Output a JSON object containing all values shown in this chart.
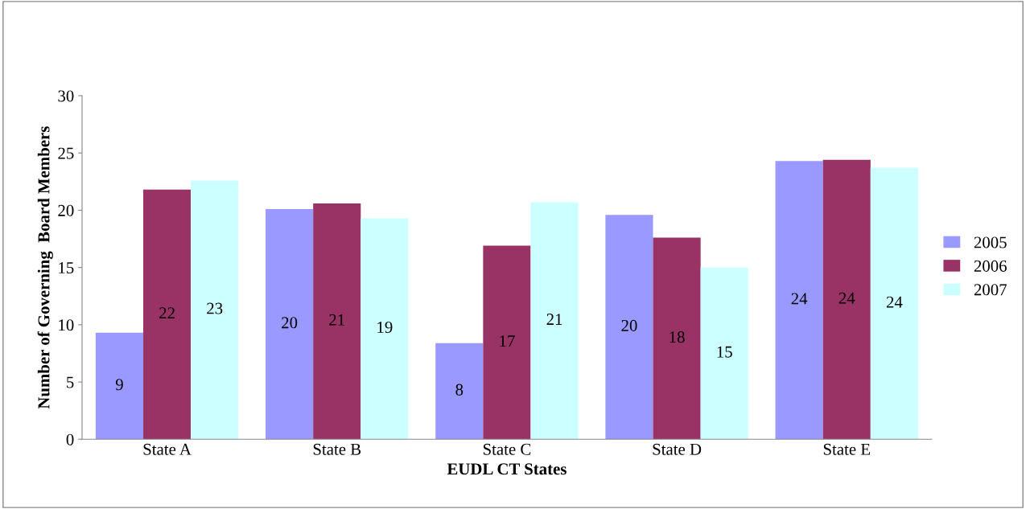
{
  "chart_data": {
    "type": "bar",
    "xlabel": "EUDL CT States",
    "ylabel": "Number of Governing  Board Members",
    "categories": [
      "State A",
      "State B",
      "State C",
      "State D",
      "State E"
    ],
    "series": [
      {
        "name": "2005",
        "color": "#9999ff",
        "values": [
          9.3,
          20.1,
          8.4,
          19.6,
          24.3
        ],
        "value_labels": [
          "9",
          "20",
          "8",
          "20",
          "24"
        ]
      },
      {
        "name": "2006",
        "color": "#993366",
        "values": [
          21.8,
          20.6,
          16.9,
          17.6,
          24.4
        ],
        "value_labels": [
          "22",
          "21",
          "17",
          "18",
          "24"
        ]
      },
      {
        "name": "2007",
        "color": "#ccffff",
        "values": [
          22.6,
          19.3,
          20.7,
          15.0,
          23.7
        ],
        "value_labels": [
          "23",
          "19",
          "21",
          "15",
          "24"
        ]
      }
    ],
    "ylim": [
      0,
      30
    ],
    "yticks": [
      0,
      5,
      10,
      15,
      20,
      25,
      30
    ],
    "grid": false,
    "legend": "right"
  }
}
